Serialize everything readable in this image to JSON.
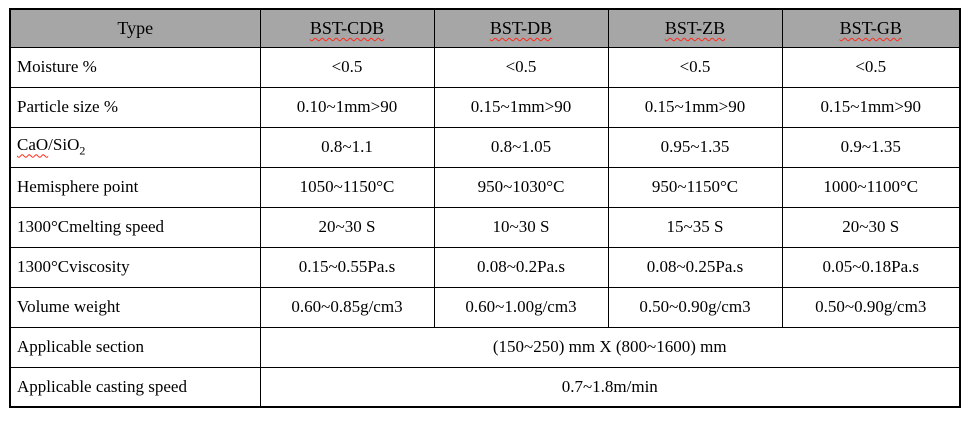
{
  "colors": {
    "header_bg": "#a6a6a6",
    "border": "#000000",
    "spellcheck_squiggle": "#ff2a1a"
  },
  "table": {
    "header": {
      "type_label": "Type",
      "columns": [
        "BST-CDB",
        "BST-DB",
        "BST-ZB",
        "BST-GB"
      ]
    },
    "rows": [
      {
        "label": "Moisture %",
        "values": [
          "<0.5",
          "<0.5",
          "<0.5",
          "<0.5"
        ]
      },
      {
        "label": "Particle size %",
        "values": [
          "0.10~1mm>90",
          "0.15~1mm>90",
          "0.15~1mm>90",
          "0.15~1mm>90"
        ]
      },
      {
        "label_squiggled_part": "CaO",
        "label_rest": "/SiO",
        "label_subscript": "2",
        "values": [
          "0.8~1.1",
          "0.8~1.05",
          "0.95~1.35",
          "0.9~1.35"
        ]
      },
      {
        "label": "Hemisphere point",
        "values": [
          "1050~1150°C",
          "950~1030°C",
          "950~1150°C",
          "1000~1100°C"
        ]
      },
      {
        "label": "1300°Cmelting speed",
        "values": [
          "20~30 S",
          "10~30 S",
          "15~35 S",
          "20~30 S"
        ]
      },
      {
        "label": "1300°Cviscosity",
        "values": [
          "0.15~0.55Pa.s",
          "0.08~0.2Pa.s",
          "0.08~0.25Pa.s",
          "0.05~0.18Pa.s"
        ]
      },
      {
        "label": "Volume weight",
        "values": [
          "0.60~0.85g/cm3",
          "0.60~1.00g/cm3",
          "0.50~0.90g/cm3",
          "0.50~0.90g/cm3"
        ]
      }
    ],
    "span_rows": [
      {
        "label": "Applicable section",
        "value": "(150~250) mm X (800~1600) mm"
      },
      {
        "label": "Applicable casting speed",
        "value": "0.7~1.8m/min"
      }
    ]
  }
}
